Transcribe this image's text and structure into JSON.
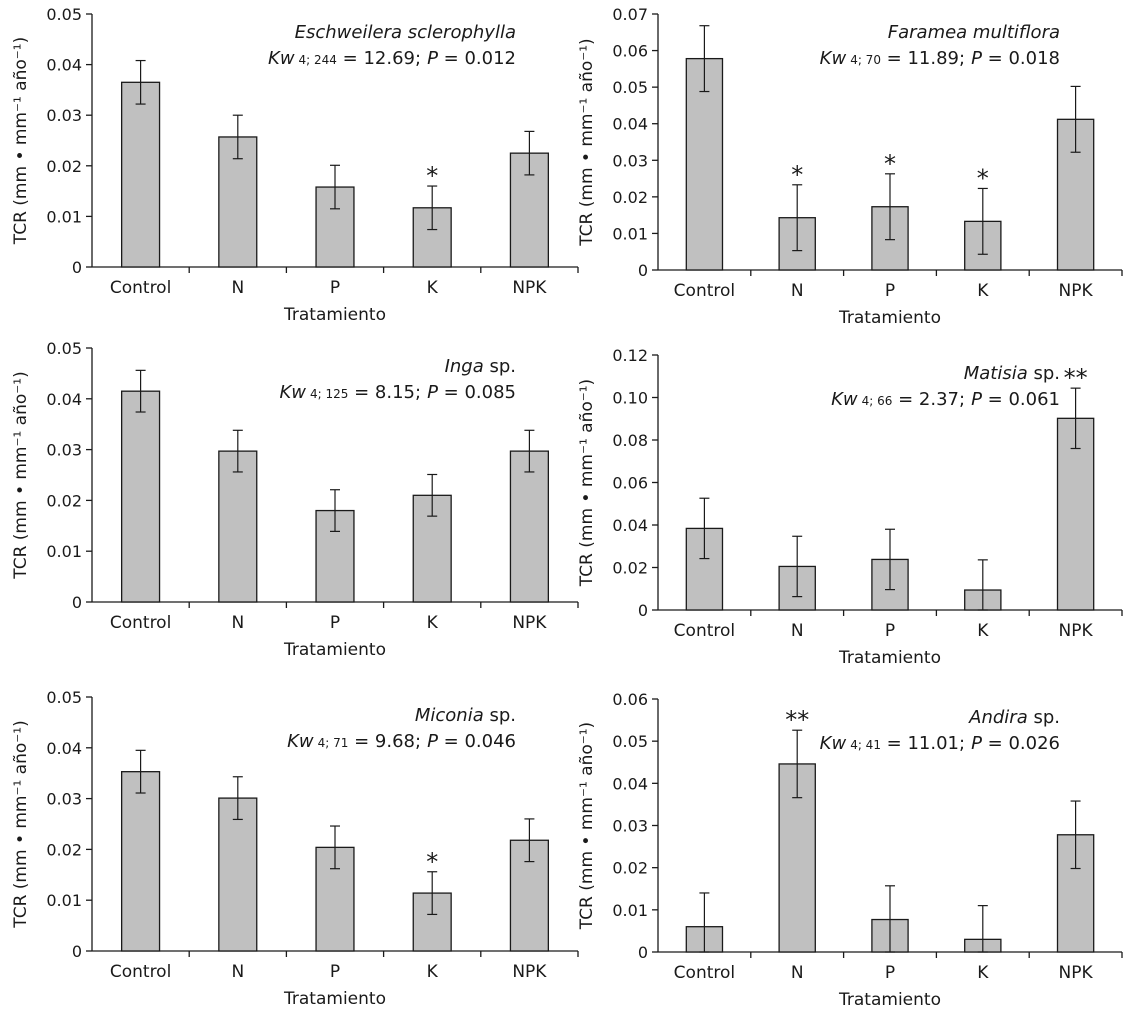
{
  "colors": {
    "bar_fill": "#c0c0c0",
    "stroke": "#1a1a1a"
  },
  "chart_data": [
    {
      "type": "bar",
      "species_italic": "Eschweilera sclerophylla",
      "species_plain": "",
      "stat_prefix": "Kw",
      "stat_sub": "4; 244",
      "stat_equals": " = 12.69;",
      "stat_p_label": "P",
      "stat_p_equals": " = 0.012",
      "xlabel": "Tratamiento",
      "ylabel": "TCR (mm • mm⁻¹ año⁻¹)",
      "categories": [
        "Control",
        "N",
        "P",
        "K",
        "NPK"
      ],
      "values": [
        0.0365,
        0.0257,
        0.0158,
        0.0117,
        0.0225
      ],
      "errors": [
        0.0043,
        0.0043,
        0.0043,
        0.0043,
        0.0043
      ],
      "significance": [
        "",
        "",
        "",
        "*",
        ""
      ],
      "ylim": [
        0,
        0.05
      ],
      "yticks": [
        "0",
        "0.01",
        "0.02",
        "0.03",
        "0.04",
        "0.05"
      ]
    },
    {
      "type": "bar",
      "species_italic": "Faramea multiflora",
      "species_plain": "",
      "stat_prefix": "Kw",
      "stat_sub": "4; 70",
      "stat_equals": " = 11.89;",
      "stat_p_label": "P",
      "stat_p_equals": " = 0.018",
      "xlabel": "Tratamiento",
      "ylabel": "TCR (mm • mm⁻¹ año⁻¹)",
      "categories": [
        "Control",
        "N",
        "P",
        "K",
        "NPK"
      ],
      "values": [
        0.0578,
        0.0143,
        0.0173,
        0.0133,
        0.0412
      ],
      "errors": [
        0.009,
        0.009,
        0.009,
        0.009,
        0.009
      ],
      "significance": [
        "",
        "*",
        "*",
        "*",
        ""
      ],
      "ylim": [
        0,
        0.07
      ],
      "yticks": [
        "0",
        "0.01",
        "0.02",
        "0.03",
        "0.04",
        "0.05",
        "0.06",
        "0.07"
      ]
    },
    {
      "type": "bar",
      "species_italic": "Inga",
      "species_plain": " sp.",
      "stat_prefix": "Kw",
      "stat_sub": "4; 125",
      "stat_equals": " = 8.15;",
      "stat_p_label": "P",
      "stat_p_equals": " = 0.085",
      "xlabel": "Tratamiento",
      "ylabel": "TCR (mm • mm⁻¹ año⁻¹)",
      "categories": [
        "Control",
        "N",
        "P",
        "K",
        "NPK"
      ],
      "values": [
        0.0415,
        0.0297,
        0.018,
        0.021,
        0.0297
      ],
      "errors": [
        0.0041,
        0.0041,
        0.0041,
        0.0041,
        0.0041
      ],
      "significance": [
        "",
        "",
        "",
        "",
        ""
      ],
      "ylim": [
        0,
        0.05
      ],
      "yticks": [
        "0",
        "0.01",
        "0.02",
        "0.03",
        "0.04",
        "0.05"
      ]
    },
    {
      "type": "bar",
      "species_italic": "Matisia",
      "species_plain": " sp.",
      "stat_prefix": "Kw",
      "stat_sub": "4; 66",
      "stat_equals": " = 2.37;",
      "stat_p_label": "P",
      "stat_p_equals": " = 0.061",
      "xlabel": "Tratamiento",
      "ylabel": "TCR (mm • mm⁻¹ año⁻¹)",
      "categories": [
        "Control",
        "N",
        "P",
        "K",
        "NPK"
      ],
      "values": [
        0.0384,
        0.0205,
        0.0238,
        0.0094,
        0.0902
      ],
      "errors": [
        0.0142,
        0.0142,
        0.0142,
        0.0142,
        0.0142
      ],
      "significance": [
        "",
        "",
        "",
        "",
        "**"
      ],
      "ylim": [
        0,
        0.12
      ],
      "yticks": [
        "0",
        "0.02",
        "0.04",
        "0.06",
        "0.08",
        "0.10",
        "0.12"
      ]
    },
    {
      "type": "bar",
      "species_italic": "Miconia",
      "species_plain": " sp.",
      "stat_prefix": "Kw",
      "stat_sub": "4; 71",
      "stat_equals": " = 9.68;",
      "stat_p_label": "P",
      "stat_p_equals": " = 0.046",
      "xlabel": "Tratamiento",
      "ylabel": "TCR (mm • mm⁻¹ año⁻¹)",
      "categories": [
        "Control",
        "N",
        "P",
        "K",
        "NPK"
      ],
      "values": [
        0.0353,
        0.0301,
        0.0204,
        0.0114,
        0.0218
      ],
      "errors": [
        0.0042,
        0.0042,
        0.0042,
        0.0042,
        0.0042
      ],
      "significance": [
        "",
        "",
        "",
        "*",
        ""
      ],
      "ylim": [
        0,
        0.05
      ],
      "yticks": [
        "0",
        "0.01",
        "0.02",
        "0.03",
        "0.04",
        "0.05"
      ]
    },
    {
      "type": "bar",
      "species_italic": "Andira",
      "species_plain": " sp.",
      "stat_prefix": "Kw",
      "stat_sub": "4; 41",
      "stat_equals": " = 11.01;",
      "stat_p_label": "P",
      "stat_p_equals": " = 0.026",
      "xlabel": "Tratamiento",
      "ylabel": "TCR (mm • mm⁻¹ año⁻¹)",
      "categories": [
        "Control",
        "N",
        "P",
        "K",
        "NPK"
      ],
      "values": [
        0.006,
        0.0446,
        0.0077,
        0.003,
        0.0278
      ],
      "errors": [
        0.008,
        0.008,
        0.008,
        0.008,
        0.008
      ],
      "significance": [
        "",
        "**",
        "",
        "",
        ""
      ],
      "ylim": [
        0,
        0.06
      ],
      "yticks": [
        "0",
        "0.01",
        "0.02",
        "0.03",
        "0.04",
        "0.05",
        "0.06"
      ]
    }
  ]
}
